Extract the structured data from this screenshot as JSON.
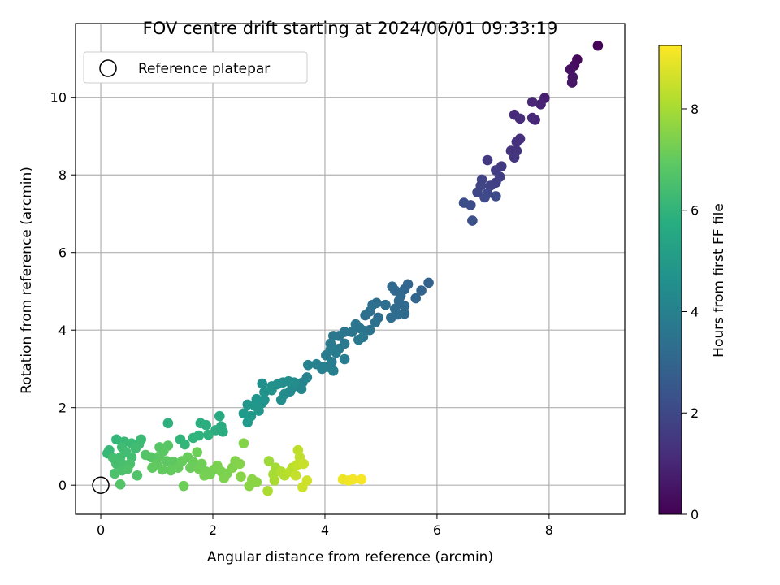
{
  "chart_data": {
    "type": "scatter",
    "title": "FOV centre drift starting at 2024/06/01 09:33:19",
    "xlabel": "Angular distance from reference (arcmin)",
    "ylabel": "Rotation from reference (arcmin)",
    "xlim": [
      -0.45,
      9.35
    ],
    "ylim": [
      -0.75,
      11.9
    ],
    "xticks": [
      0,
      2,
      4,
      6,
      8
    ],
    "yticks": [
      0,
      2,
      4,
      6,
      8,
      10
    ],
    "grid": true,
    "legend": {
      "position": "top-left",
      "entries": [
        "Reference platepar"
      ]
    },
    "colorbar": {
      "label": "Hours from first FF file",
      "range": [
        0,
        9.25
      ],
      "ticks": [
        0,
        2,
        4,
        6,
        8
      ],
      "colormap": "viridis"
    },
    "reference_point": {
      "x": 0,
      "y": 0
    },
    "points": [
      [
        8.87,
        11.33,
        0.05
      ],
      [
        8.5,
        10.97,
        0.2
      ],
      [
        8.45,
        10.82,
        0.3
      ],
      [
        8.38,
        10.72,
        0.4
      ],
      [
        8.42,
        10.52,
        0.5
      ],
      [
        8.41,
        10.38,
        0.55
      ],
      [
        7.92,
        9.98,
        0.8
      ],
      [
        7.85,
        9.82,
        0.9
      ],
      [
        7.7,
        9.88,
        0.95
      ],
      [
        7.75,
        9.42,
        1.0
      ],
      [
        7.7,
        9.47,
        1.05
      ],
      [
        7.38,
        9.55,
        1.1
      ],
      [
        7.48,
        9.45,
        1.15
      ],
      [
        7.48,
        8.93,
        1.25
      ],
      [
        7.42,
        8.85,
        1.3
      ],
      [
        7.32,
        8.62,
        1.35
      ],
      [
        7.42,
        8.62,
        1.4
      ],
      [
        7.38,
        8.45,
        1.45
      ],
      [
        6.9,
        8.38,
        1.55
      ],
      [
        7.15,
        8.22,
        1.6
      ],
      [
        7.05,
        8.12,
        1.65
      ],
      [
        7.12,
        7.95,
        1.7
      ],
      [
        7.05,
        7.8,
        1.75
      ],
      [
        6.95,
        7.72,
        1.8
      ],
      [
        6.8,
        7.88,
        1.85
      ],
      [
        6.78,
        7.72,
        1.9
      ],
      [
        6.72,
        7.55,
        1.95
      ],
      [
        6.9,
        7.52,
        2.0
      ],
      [
        6.85,
        7.42,
        2.05
      ],
      [
        7.05,
        7.45,
        2.1
      ],
      [
        6.6,
        7.22,
        2.15
      ],
      [
        6.48,
        7.28,
        2.2
      ],
      [
        6.63,
        6.82,
        2.25
      ],
      [
        5.85,
        5.22,
        2.9
      ],
      [
        5.72,
        5.02,
        2.95
      ],
      [
        5.62,
        4.82,
        3.0
      ],
      [
        5.48,
        5.18,
        3.02
      ],
      [
        5.42,
        5.05,
        3.05
      ],
      [
        5.35,
        4.88,
        3.08
      ],
      [
        5.25,
        5.02,
        3.1
      ],
      [
        5.2,
        5.12,
        3.12
      ],
      [
        5.32,
        4.75,
        3.15
      ],
      [
        5.42,
        4.62,
        3.18
      ],
      [
        5.25,
        4.55,
        3.2
      ],
      [
        5.42,
        4.42,
        3.22
      ],
      [
        5.3,
        4.4,
        3.25
      ],
      [
        5.18,
        4.32,
        3.28
      ],
      [
        4.95,
        4.32,
        3.3
      ],
      [
        5.08,
        4.65,
        3.32
      ],
      [
        4.92,
        4.7,
        3.35
      ],
      [
        4.85,
        4.65,
        3.38
      ],
      [
        4.8,
        4.48,
        3.4
      ],
      [
        4.72,
        4.38,
        3.42
      ],
      [
        4.9,
        4.2,
        3.45
      ],
      [
        4.8,
        4.0,
        3.5
      ],
      [
        4.7,
        3.98,
        3.52
      ],
      [
        4.62,
        4.05,
        3.55
      ],
      [
        4.55,
        4.15,
        3.58
      ],
      [
        4.48,
        3.95,
        3.6
      ],
      [
        4.35,
        3.95,
        3.62
      ],
      [
        4.25,
        3.85,
        3.65
      ],
      [
        4.15,
        3.85,
        3.68
      ],
      [
        4.6,
        3.75,
        3.7
      ],
      [
        4.68,
        3.82,
        3.72
      ],
      [
        4.35,
        3.65,
        3.75
      ],
      [
        4.25,
        3.52,
        3.78
      ],
      [
        4.1,
        3.65,
        3.8
      ],
      [
        4.1,
        3.5,
        3.82
      ],
      [
        4.2,
        3.42,
        3.85
      ],
      [
        4.02,
        3.35,
        3.88
      ],
      [
        4.35,
        3.25,
        3.9
      ],
      [
        4.12,
        3.18,
        3.92
      ],
      [
        4.05,
        3.05,
        3.95
      ],
      [
        4.15,
        2.95,
        3.98
      ],
      [
        3.95,
        3.05,
        4.0
      ],
      [
        3.85,
        3.12,
        4.02
      ],
      [
        3.95,
        3.0,
        4.05
      ],
      [
        3.7,
        3.1,
        4.08
      ],
      [
        3.68,
        2.78,
        4.15
      ],
      [
        3.6,
        2.65,
        4.2
      ],
      [
        3.5,
        2.6,
        4.25
      ],
      [
        3.58,
        2.48,
        4.3
      ],
      [
        3.42,
        2.52,
        4.35
      ],
      [
        3.38,
        2.42,
        4.4
      ],
      [
        3.28,
        2.35,
        4.45
      ],
      [
        3.22,
        2.2,
        4.5
      ],
      [
        3.45,
        2.65,
        4.52
      ],
      [
        3.35,
        2.68,
        4.55
      ],
      [
        3.25,
        2.65,
        4.6
      ],
      [
        3.15,
        2.6,
        4.62
      ],
      [
        3.05,
        2.55,
        4.65
      ],
      [
        3.05,
        2.45,
        4.7
      ],
      [
        2.92,
        2.4,
        4.72
      ],
      [
        2.92,
        2.2,
        4.75
      ],
      [
        2.78,
        2.22,
        4.8
      ],
      [
        2.88,
        2.12,
        4.82
      ],
      [
        2.75,
        2.05,
        4.85
      ],
      [
        2.82,
        1.92,
        4.9
      ],
      [
        2.62,
        2.08,
        4.92
      ],
      [
        2.68,
        1.78,
        4.95
      ],
      [
        2.55,
        1.85,
        4.98
      ],
      [
        2.62,
        1.62,
        5.0
      ],
      [
        2.88,
        2.62,
        4.6
      ],
      [
        2.12,
        1.78,
        5.6
      ],
      [
        2.15,
        1.52,
        5.65
      ],
      [
        2.05,
        1.42,
        5.7
      ],
      [
        2.18,
        1.38,
        5.72
      ],
      [
        1.88,
        1.55,
        5.75
      ],
      [
        1.78,
        1.6,
        5.8
      ],
      [
        1.2,
        1.6,
        5.85
      ],
      [
        1.92,
        1.3,
        5.9
      ],
      [
        1.75,
        1.28,
        5.95
      ],
      [
        1.65,
        1.22,
        6.0
      ],
      [
        1.42,
        1.18,
        6.05
      ],
      [
        1.5,
        1.05,
        6.1
      ],
      [
        0.28,
        1.18,
        6.15
      ],
      [
        0.15,
        0.9,
        6.2
      ],
      [
        0.12,
        0.82,
        6.22
      ],
      [
        0.42,
        1.12,
        6.25
      ],
      [
        0.55,
        1.08,
        6.28
      ],
      [
        0.72,
        1.18,
        6.3
      ],
      [
        0.68,
        1.05,
        6.32
      ],
      [
        0.38,
        0.98,
        6.35
      ],
      [
        0.45,
        0.85,
        6.38
      ],
      [
        0.62,
        0.95,
        6.4
      ],
      [
        0.55,
        0.72,
        6.42
      ],
      [
        0.35,
        0.72,
        6.45
      ],
      [
        0.22,
        0.7,
        6.48
      ],
      [
        0.28,
        0.55,
        6.5
      ],
      [
        0.42,
        0.52,
        6.52
      ],
      [
        0.52,
        0.55,
        6.55
      ],
      [
        0.38,
        0.38,
        6.58
      ],
      [
        0.25,
        0.3,
        6.6
      ],
      [
        0.48,
        0.42,
        6.62
      ],
      [
        0.65,
        0.25,
        6.65
      ],
      [
        0.35,
        0.02,
        6.7
      ],
      [
        0.8,
        0.78,
        6.72
      ],
      [
        0.9,
        0.72,
        6.75
      ],
      [
        1.05,
        0.98,
        6.78
      ],
      [
        1.2,
        1.02,
        6.8
      ],
      [
        1.12,
        0.88,
        6.82
      ],
      [
        1.05,
        0.75,
        6.85
      ],
      [
        1.18,
        0.62,
        6.88
      ],
      [
        1.3,
        0.6,
        6.9
      ],
      [
        1.0,
        0.55,
        6.92
      ],
      [
        0.92,
        0.45,
        6.95
      ],
      [
        1.1,
        0.4,
        6.98
      ],
      [
        1.25,
        0.38,
        7.0
      ],
      [
        1.38,
        0.45,
        7.02
      ],
      [
        1.45,
        0.62,
        7.05
      ],
      [
        1.55,
        0.72,
        7.08
      ],
      [
        1.65,
        0.6,
        7.1
      ],
      [
        1.6,
        0.45,
        7.12
      ],
      [
        1.48,
        -0.02,
        7.15
      ],
      [
        1.72,
        0.85,
        7.18
      ],
      [
        1.8,
        0.55,
        7.2
      ],
      [
        1.75,
        0.42,
        7.22
      ],
      [
        1.88,
        0.35,
        7.25
      ],
      [
        1.95,
        0.28,
        7.28
      ],
      [
        1.85,
        0.25,
        7.3
      ],
      [
        2.02,
        0.4,
        7.32
      ],
      [
        2.08,
        0.5,
        7.35
      ],
      [
        2.15,
        0.35,
        7.38
      ],
      [
        2.25,
        0.3,
        7.4
      ],
      [
        2.2,
        0.18,
        7.42
      ],
      [
        2.35,
        0.45,
        7.45
      ],
      [
        2.4,
        0.62,
        7.48
      ],
      [
        2.48,
        0.55,
        7.5
      ],
      [
        2.55,
        1.08,
        7.52
      ],
      [
        2.5,
        0.22,
        7.55
      ],
      [
        2.7,
        0.15,
        7.58
      ],
      [
        2.65,
        -0.02,
        7.6
      ],
      [
        2.78,
        0.08,
        7.62
      ],
      [
        3.0,
        0.62,
        7.9
      ],
      [
        3.12,
        0.45,
        7.95
      ],
      [
        3.08,
        0.28,
        8.0
      ],
      [
        3.1,
        0.12,
        8.05
      ],
      [
        2.98,
        -0.15,
        8.1
      ],
      [
        3.22,
        0.35,
        8.15
      ],
      [
        3.28,
        0.25,
        8.2
      ],
      [
        3.42,
        0.45,
        8.25
      ],
      [
        3.38,
        0.35,
        8.3
      ],
      [
        3.52,
        0.9,
        8.35
      ],
      [
        3.55,
        0.72,
        8.38
      ],
      [
        3.5,
        0.52,
        8.4
      ],
      [
        3.48,
        0.25,
        8.45
      ],
      [
        3.62,
        0.55,
        8.5
      ],
      [
        3.6,
        -0.05,
        8.55
      ],
      [
        3.68,
        0.12,
        8.6
      ],
      [
        4.32,
        0.15,
        9.0
      ],
      [
        4.42,
        0.12,
        9.05
      ],
      [
        4.5,
        0.15,
        9.1
      ],
      [
        4.65,
        0.15,
        9.15
      ]
    ]
  }
}
